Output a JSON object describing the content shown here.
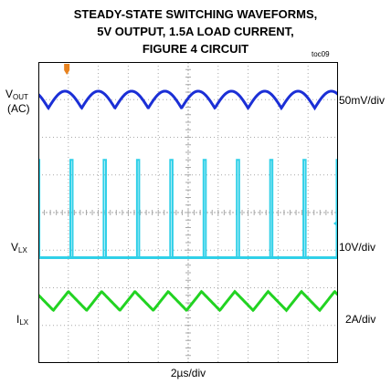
{
  "title_lines": [
    "STEADY-STATE SWITCHING WAVEFORMS,",
    "5V OUTPUT, 1.5A LOAD CURRENT,",
    "FIGURE 4 CIRCUIT"
  ],
  "figure_id": "toc09",
  "chart_data": {
    "type": "line",
    "grid": {
      "x_divisions": 10,
      "y_divisions": 8
    },
    "x_scale": "2µs/div",
    "series": [
      {
        "name": "VOUT (AC)",
        "name_main": "V",
        "name_sub": "OUT",
        "name_suffix": "(AC)",
        "scale": "50mV/div",
        "color": "#1b2fd6",
        "waveform": "ripple",
        "cycles": 9,
        "ripple_div": 0.45
      },
      {
        "name": "VLX",
        "name_main": "V",
        "name_sub": "LX",
        "scale": "10V/div",
        "color": "#2fd0e8",
        "waveform": "pulse",
        "cycles": 9,
        "high_div": 2.6,
        "duty": 0.07
      },
      {
        "name": "ILX",
        "name_main": "I",
        "name_sub": "LX",
        "scale": "2A/div",
        "color": "#22d322",
        "waveform": "triangle",
        "cycles": 9,
        "ripple_div": 0.5,
        "rise_fraction": 0.45
      }
    ]
  },
  "colors": {
    "grid": "#a8a8a8",
    "trigger_marker": "#e8821e",
    "level_marker": "#2fd0e8"
  }
}
